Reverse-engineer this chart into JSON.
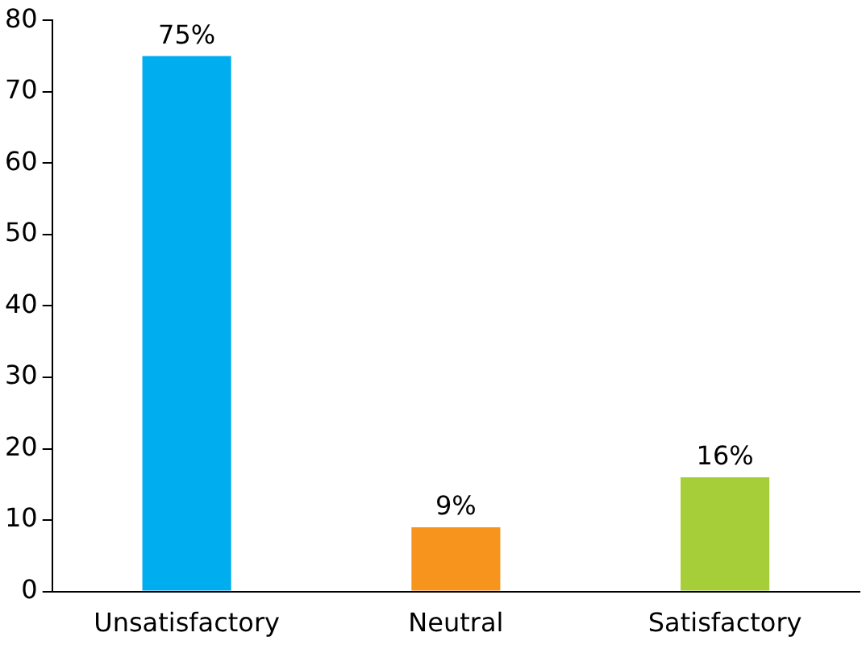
{
  "chart_data": {
    "type": "bar",
    "categories": [
      "Unsatisfactory",
      "Neutral",
      "Satisfactory"
    ],
    "values": [
      75,
      9,
      16
    ],
    "colors": [
      "#00aeef",
      "#f7941d",
      "#a6ce39"
    ],
    "value_labels": [
      "75%",
      "9%",
      "16%"
    ],
    "ylim": [
      0,
      80
    ],
    "yticks": [
      0,
      10,
      20,
      30,
      40,
      50,
      60,
      70,
      80
    ],
    "grid": false,
    "legend": false
  }
}
